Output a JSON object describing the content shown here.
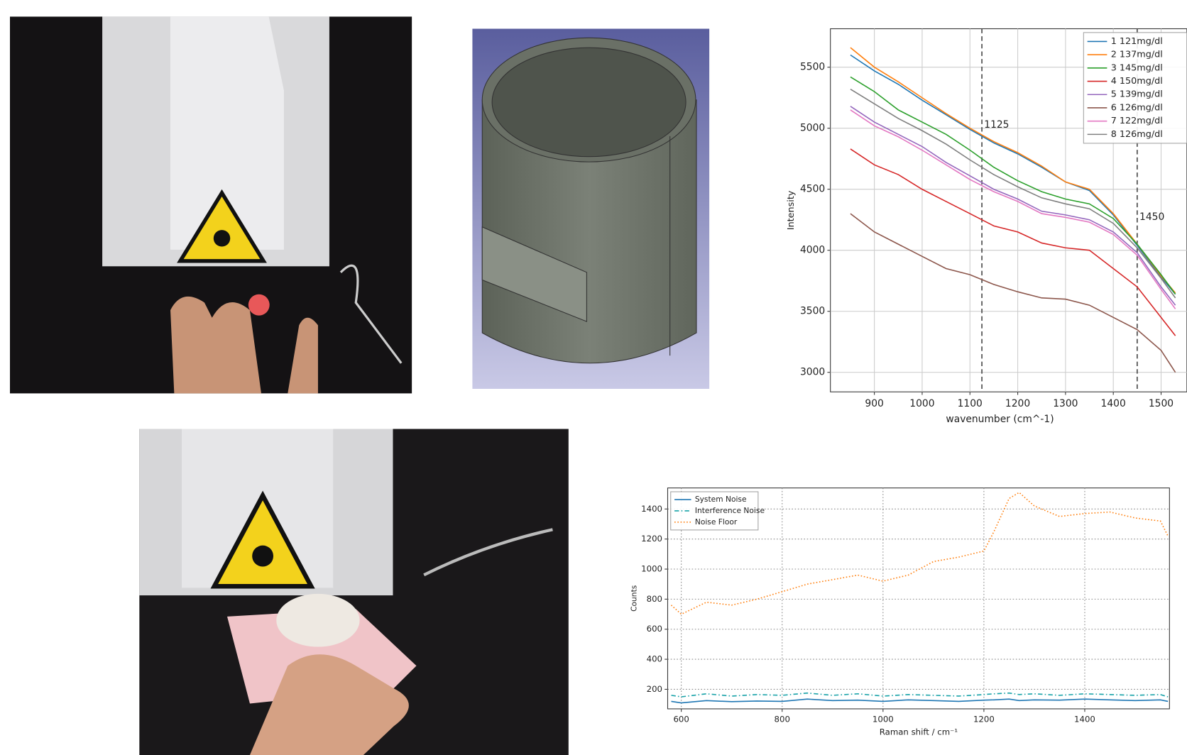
{
  "chart_data": [
    {
      "type": "line",
      "x_label": "wavenumber (cm^-1)",
      "y_label": "Intensity",
      "x": [
        850,
        900,
        950,
        1000,
        1050,
        1100,
        1150,
        1200,
        1250,
        1300,
        1350,
        1400,
        1450,
        1500,
        1530
      ],
      "series": [
        {
          "name": "1 121mg/dl",
          "color": "#1f77b4",
          "values": [
            5600,
            5470,
            5360,
            5230,
            5110,
            4990,
            4880,
            4790,
            4680,
            4560,
            4490,
            4290,
            4040,
            3780,
            3640
          ]
        },
        {
          "name": "2 137mg/dl",
          "color": "#ff7f0e",
          "values": [
            5660,
            5500,
            5380,
            5250,
            5120,
            5000,
            4890,
            4800,
            4690,
            4560,
            4500,
            4300,
            4050,
            3790,
            3650
          ]
        },
        {
          "name": "3 145mg/dl",
          "color": "#2ca02c",
          "values": [
            5420,
            5300,
            5150,
            5050,
            4950,
            4820,
            4680,
            4570,
            4480,
            4420,
            4380,
            4260,
            4050,
            3800,
            3640
          ]
        },
        {
          "name": "4 150mg/dl",
          "color": "#d62728",
          "values": [
            4830,
            4700,
            4620,
            4500,
            4400,
            4300,
            4200,
            4150,
            4060,
            4020,
            4000,
            3850,
            3700,
            3450,
            3300
          ]
        },
        {
          "name": "5 139mg/dl",
          "color": "#9467bd",
          "values": [
            5180,
            5050,
            4950,
            4850,
            4720,
            4610,
            4500,
            4420,
            4320,
            4290,
            4250,
            4150,
            3980,
            3700,
            3550
          ]
        },
        {
          "name": "6 126mg/dl",
          "color": "#8c564b",
          "values": [
            4300,
            4150,
            4050,
            3950,
            3850,
            3800,
            3720,
            3660,
            3610,
            3600,
            3550,
            3450,
            3350,
            3180,
            3000
          ]
        },
        {
          "name": "7 122mg/dl",
          "color": "#e377c2",
          "values": [
            5150,
            5020,
            4930,
            4820,
            4700,
            4580,
            4480,
            4400,
            4300,
            4270,
            4230,
            4130,
            3960,
            3680,
            3520
          ]
        },
        {
          "name": "8 126mg/dl",
          "color": "#7f7f7f",
          "values": [
            5320,
            5200,
            5080,
            4980,
            4870,
            4740,
            4620,
            4520,
            4430,
            4380,
            4340,
            4220,
            4020,
            3770,
            3610
          ]
        }
      ],
      "xlim": [
        808,
        1554
      ],
      "ylim": [
        2840,
        5815
      ],
      "xticks": [
        900,
        1000,
        1100,
        1200,
        1300,
        1400,
        1500
      ],
      "yticks": [
        3000,
        3500,
        4000,
        4500,
        5000,
        5500
      ],
      "vlines": [
        {
          "x": 1125,
          "label": "1125"
        },
        {
          "x": 1450,
          "label": "1450"
        }
      ],
      "grid": "solid",
      "legend": "upper right"
    },
    {
      "type": "line",
      "x_label": "Raman shift / cm⁻¹",
      "y_label": "Counts",
      "x": [
        580,
        600,
        650,
        700,
        750,
        800,
        850,
        900,
        950,
        1000,
        1050,
        1100,
        1150,
        1200,
        1220,
        1250,
        1270,
        1300,
        1350,
        1400,
        1450,
        1500,
        1550,
        1565
      ],
      "series": [
        {
          "name": "System Noise",
          "color": "#1f77b4",
          "dash": "solid",
          "values": [
            120,
            110,
            125,
            118,
            122,
            120,
            135,
            125,
            128,
            120,
            130,
            125,
            120,
            128,
            130,
            135,
            125,
            130,
            128,
            135,
            130,
            125,
            130,
            120
          ]
        },
        {
          "name": "Interference Noise",
          "color": "#17a2a8",
          "dash": "dashdot",
          "values": [
            160,
            150,
            170,
            155,
            165,
            160,
            175,
            160,
            170,
            155,
            165,
            160,
            155,
            165,
            170,
            175,
            165,
            170,
            160,
            170,
            165,
            160,
            165,
            150
          ]
        },
        {
          "name": "Noise Floor",
          "color": "#ff7f0e",
          "dash": "dotted",
          "values": [
            760,
            700,
            780,
            760,
            800,
            850,
            900,
            930,
            960,
            920,
            960,
            1050,
            1080,
            1120,
            1250,
            1470,
            1510,
            1420,
            1350,
            1370,
            1380,
            1340,
            1320,
            1220
          ]
        }
      ],
      "xlim": [
        573,
        1568
      ],
      "ylim": [
        70,
        1540
      ],
      "xticks": [
        600,
        800,
        1000,
        1200,
        1400
      ],
      "yticks": [
        200,
        400,
        600,
        800,
        1000,
        1200,
        1400
      ],
      "grid": "dotted",
      "legend": "upper left"
    }
  ]
}
